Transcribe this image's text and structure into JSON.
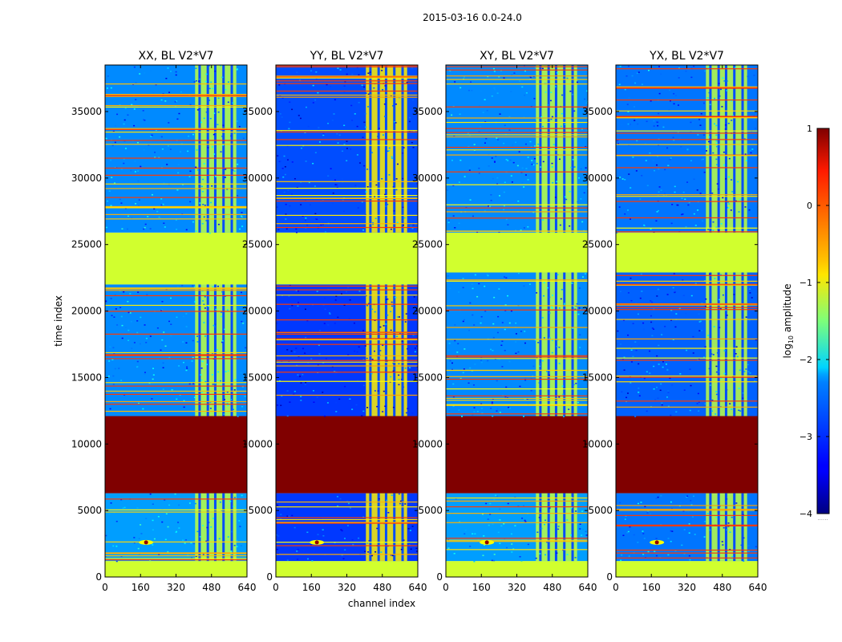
{
  "figure": {
    "suptitle": "2015-03-16 0.0-24.0",
    "shared_xlabel": "channel index",
    "shared_ylabel": "time index",
    "colorbar_label": "log",
    "colorbar_label_sub": "10",
    "colorbar_label_tail": " amplitude",
    "colorbar_footnote": "......"
  },
  "colors": {
    "dark_red": "#7f0000",
    "red_orange": "#ff4a00",
    "orange": "#ff9e00",
    "yellow": "#e8ff10",
    "light_green": "#9cff5a",
    "green": "#86ff70",
    "cyan": "#16e0ff",
    "light_blue": "#1aa0ff",
    "blue": "#0060ff",
    "dark_blue": "#0010ff",
    "navy": "#00007f"
  },
  "chart_data": [
    {
      "type": "heatmap",
      "title": "XX, BL V2*V7",
      "xlabel": "",
      "ylabel": "time index",
      "xlim": [
        0,
        640
      ],
      "ylim": [
        0,
        38500
      ],
      "xticks": [
        0,
        160,
        320,
        480,
        640
      ],
      "yticks": [
        0,
        5000,
        10000,
        15000,
        20000,
        25000,
        30000,
        35000
      ],
      "colorscale": "jet",
      "clim": [
        -4,
        1
      ],
      "colorbar_ticks": [
        1,
        0,
        -1,
        -2,
        -3,
        -4
      ],
      "value_bands": [
        {
          "t0": 0,
          "t1": 1200,
          "value": -1.1
        },
        {
          "t0": 1200,
          "t1": 6300,
          "value": -2.6
        },
        {
          "t0": 6300,
          "t1": 12100,
          "value": 1.0
        },
        {
          "t0": 12100,
          "t1": 22000,
          "value": -2.7
        },
        {
          "t0": 22000,
          "t1": 25900,
          "value": -1.1
        },
        {
          "t0": 25900,
          "t1": 38500,
          "value": -2.7
        }
      ],
      "active_channels": [
        406,
        592
      ],
      "active_channel_value": -1.2
    },
    {
      "type": "heatmap",
      "title": "YY, BL V2*V7",
      "xlabel": "channel index",
      "ylabel": "",
      "xlim": [
        0,
        640
      ],
      "ylim": [
        0,
        38500
      ],
      "xticks": [
        0,
        160,
        320,
        480,
        640
      ],
      "yticks": [
        0,
        5000,
        10000,
        15000,
        20000,
        25000,
        30000,
        35000
      ],
      "colorscale": "jet",
      "clim": [
        -4,
        1
      ],
      "colorbar_ticks": [
        1,
        0,
        -1,
        -2,
        -3,
        -4
      ],
      "value_bands": [
        {
          "t0": 0,
          "t1": 1200,
          "value": -1.1
        },
        {
          "t0": 1200,
          "t1": 6300,
          "value": -3.1
        },
        {
          "t0": 6300,
          "t1": 12100,
          "value": 1.0
        },
        {
          "t0": 12100,
          "t1": 22000,
          "value": -3.1
        },
        {
          "t0": 22000,
          "t1": 25900,
          "value": -1.1
        },
        {
          "t0": 25900,
          "t1": 38500,
          "value": -3.0
        }
      ],
      "active_channels": [
        406,
        592
      ],
      "active_channel_value": -0.8
    },
    {
      "type": "heatmap",
      "title": "XY, BL V2*V7",
      "xlabel": "",
      "ylabel": "",
      "xlim": [
        0,
        640
      ],
      "ylim": [
        0,
        38500
      ],
      "xticks": [
        0,
        160,
        320,
        480,
        640
      ],
      "yticks": [
        0,
        5000,
        10000,
        15000,
        20000,
        25000,
        30000,
        35000
      ],
      "colorscale": "jet",
      "clim": [
        -4,
        1
      ],
      "colorbar_ticks": [
        1,
        0,
        -1,
        -2,
        -3,
        -4
      ],
      "value_bands": [
        {
          "t0": 0,
          "t1": 1200,
          "value": -1.1
        },
        {
          "t0": 1200,
          "t1": 6300,
          "value": -2.6
        },
        {
          "t0": 6300,
          "t1": 12100,
          "value": 1.0
        },
        {
          "t0": 12100,
          "t1": 22900,
          "value": -2.7
        },
        {
          "t0": 22900,
          "t1": 25900,
          "value": -1.1
        },
        {
          "t0": 25900,
          "t1": 38500,
          "value": -2.7
        }
      ],
      "active_channels": [
        406,
        592
      ],
      "active_channel_value": -1.2
    },
    {
      "type": "heatmap",
      "title": "YX, BL V2*V7",
      "xlabel": "",
      "ylabel": "",
      "xlim": [
        0,
        640
      ],
      "ylim": [
        0,
        38500
      ],
      "xticks": [
        0,
        160,
        320,
        480,
        640
      ],
      "yticks": [
        0,
        5000,
        10000,
        15000,
        20000,
        25000,
        30000,
        35000
      ],
      "colorscale": "jet",
      "clim": [
        -4,
        1
      ],
      "colorbar_ticks": [
        1,
        0,
        -1,
        -2,
        -3,
        -4
      ],
      "value_bands": [
        {
          "t0": 0,
          "t1": 1200,
          "value": -1.1
        },
        {
          "t0": 1200,
          "t1": 6300,
          "value": -2.8
        },
        {
          "t0": 6300,
          "t1": 12100,
          "value": 1.0
        },
        {
          "t0": 12100,
          "t1": 22900,
          "value": -2.9
        },
        {
          "t0": 22900,
          "t1": 25900,
          "value": -1.1
        },
        {
          "t0": 25900,
          "t1": 38500,
          "value": -2.8
        }
      ],
      "active_channels": [
        406,
        592
      ],
      "active_channel_value": -1.2
    }
  ]
}
